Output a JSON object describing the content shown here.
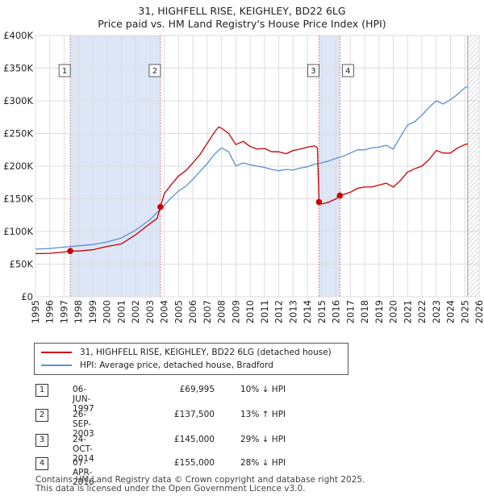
{
  "title": {
    "line1": "31, HIGHFELL RISE, KEIGHLEY, BD22 6LG",
    "line2": "Price paid vs. HM Land Registry's House Price Index (HPI)"
  },
  "colors": {
    "price_paid": "#cc0000",
    "hpi": "#5b8fd4",
    "sale_band": "#dde6f7",
    "marker_line": "#e06060",
    "grid": "#dddddd"
  },
  "legend": {
    "series1": "31, HIGHFELL RISE, KEIGHLEY, BD22 6LG (detached house)",
    "series2": "HPI: Average price, detached house, Bradford"
  },
  "transactions": [
    {
      "num": "1",
      "date": "06-JUN-1997",
      "price": "£69,995",
      "hpi": "10% ↓ HPI"
    },
    {
      "num": "2",
      "date": "26-SEP-2003",
      "price": "£137,500",
      "hpi": "13% ↑ HPI"
    },
    {
      "num": "3",
      "date": "24-OCT-2014",
      "price": "£145,000",
      "hpi": "29% ↓ HPI"
    },
    {
      "num": "4",
      "date": "07-APR-2016",
      "price": "£155,000",
      "hpi": "28% ↓ HPI"
    }
  ],
  "footer": {
    "line1": "Contains HM Land Registry data © Crown copyright and database right 2025.",
    "line2": "This data is licensed under the Open Government Licence v3.0."
  },
  "chart_data": {
    "type": "line",
    "title": "31, HIGHFELL RISE, KEIGHLEY, BD22 6LG — Price paid vs. HM Land Registry's House Price Index (HPI)",
    "xlabel": "",
    "ylabel": "",
    "xlim": [
      1995,
      2026
    ],
    "ylim": [
      0,
      400000
    ],
    "x_ticks": [
      "1995",
      "1996",
      "1997",
      "1998",
      "1999",
      "2000",
      "2001",
      "2002",
      "2003",
      "2004",
      "2005",
      "2006",
      "2007",
      "2008",
      "2009",
      "2010",
      "2011",
      "2012",
      "2013",
      "2014",
      "2015",
      "2016",
      "2017",
      "2018",
      "2019",
      "2020",
      "2021",
      "2022",
      "2023",
      "2024",
      "2025",
      "2026"
    ],
    "y_ticks": [
      {
        "value": 0,
        "label": "£0"
      },
      {
        "value": 50000,
        "label": "£50K"
      },
      {
        "value": 100000,
        "label": "£100K"
      },
      {
        "value": 150000,
        "label": "£150K"
      },
      {
        "value": 200000,
        "label": "£200K"
      },
      {
        "value": 250000,
        "label": "£250K"
      },
      {
        "value": 300000,
        "label": "£300K"
      },
      {
        "value": 350000,
        "label": "£350K"
      },
      {
        "value": 400000,
        "label": "£400K"
      }
    ],
    "grid": true,
    "sale_bands": [
      [
        1997.43,
        2003.73
      ],
      [
        2014.81,
        2016.27
      ]
    ],
    "forecast_from": 2025.2,
    "sales": [
      {
        "label": "1",
        "x": 1997.43,
        "y": 69995
      },
      {
        "label": "2",
        "x": 2003.73,
        "y": 137500
      },
      {
        "label": "3",
        "x": 2014.81,
        "y": 145000
      },
      {
        "label": "4",
        "x": 2016.27,
        "y": 155000
      }
    ],
    "series": [
      {
        "name": "31, HIGHFELL RISE, KEIGHLEY, BD22 6LG (detached house)",
        "points": [
          [
            1995.0,
            66000
          ],
          [
            1996.0,
            66500
          ],
          [
            1997.0,
            68500
          ],
          [
            1997.43,
            69995
          ],
          [
            1998.0,
            70000
          ],
          [
            1999.0,
            72000
          ],
          [
            2000.0,
            77000
          ],
          [
            2001.0,
            81000
          ],
          [
            2002.0,
            95000
          ],
          [
            2003.0,
            112000
          ],
          [
            2003.5,
            120000
          ],
          [
            2003.73,
            137500
          ],
          [
            2004.0,
            158000
          ],
          [
            2004.5,
            172000
          ],
          [
            2005.0,
            185000
          ],
          [
            2005.5,
            193000
          ],
          [
            2006.0,
            205000
          ],
          [
            2006.5,
            218000
          ],
          [
            2007.0,
            235000
          ],
          [
            2007.5,
            252000
          ],
          [
            2007.8,
            260000
          ],
          [
            2008.0,
            258000
          ],
          [
            2008.5,
            250000
          ],
          [
            2009.0,
            233000
          ],
          [
            2009.5,
            238000
          ],
          [
            2010.0,
            230000
          ],
          [
            2010.5,
            226000
          ],
          [
            2011.0,
            227000
          ],
          [
            2011.5,
            222000
          ],
          [
            2012.0,
            222000
          ],
          [
            2012.5,
            219000
          ],
          [
            2013.0,
            224000
          ],
          [
            2013.5,
            226000
          ],
          [
            2014.0,
            229000
          ],
          [
            2014.5,
            231000
          ],
          [
            2014.7,
            228000
          ],
          [
            2014.81,
            145000
          ],
          [
            2015.0,
            142000
          ],
          [
            2015.5,
            145000
          ],
          [
            2016.0,
            150000
          ],
          [
            2016.27,
            155000
          ],
          [
            2016.6,
            157000
          ],
          [
            2017.0,
            160000
          ],
          [
            2017.5,
            166000
          ],
          [
            2018.0,
            168000
          ],
          [
            2018.5,
            168000
          ],
          [
            2019.0,
            171000
          ],
          [
            2019.5,
            174000
          ],
          [
            2020.0,
            168000
          ],
          [
            2020.5,
            178000
          ],
          [
            2021.0,
            191000
          ],
          [
            2021.5,
            196000
          ],
          [
            2022.0,
            200000
          ],
          [
            2022.5,
            210000
          ],
          [
            2023.0,
            224000
          ],
          [
            2023.5,
            220000
          ],
          [
            2024.0,
            220000
          ],
          [
            2024.5,
            228000
          ],
          [
            2025.0,
            233000
          ],
          [
            2025.2,
            234000
          ]
        ]
      },
      {
        "name": "HPI: Average price, detached house, Bradford",
        "points": [
          [
            1995.0,
            73000
          ],
          [
            1996.0,
            74000
          ],
          [
            1997.0,
            76000
          ],
          [
            1998.0,
            78000
          ],
          [
            1999.0,
            80000
          ],
          [
            2000.0,
            84000
          ],
          [
            2001.0,
            90000
          ],
          [
            2002.0,
            102000
          ],
          [
            2003.0,
            118000
          ],
          [
            2004.0,
            140000
          ],
          [
            2004.5,
            152000
          ],
          [
            2005.0,
            162000
          ],
          [
            2005.5,
            169000
          ],
          [
            2006.0,
            180000
          ],
          [
            2006.5,
            192000
          ],
          [
            2007.0,
            204000
          ],
          [
            2007.5,
            218000
          ],
          [
            2008.0,
            228000
          ],
          [
            2008.5,
            222000
          ],
          [
            2009.0,
            200000
          ],
          [
            2009.5,
            205000
          ],
          [
            2010.0,
            202000
          ],
          [
            2010.5,
            200000
          ],
          [
            2011.0,
            198000
          ],
          [
            2011.5,
            195000
          ],
          [
            2012.0,
            193000
          ],
          [
            2012.5,
            195000
          ],
          [
            2013.0,
            194000
          ],
          [
            2013.5,
            197000
          ],
          [
            2014.0,
            199000
          ],
          [
            2014.5,
            203000
          ],
          [
            2015.0,
            205000
          ],
          [
            2015.5,
            208000
          ],
          [
            2016.0,
            212000
          ],
          [
            2016.5,
            215000
          ],
          [
            2017.0,
            220000
          ],
          [
            2017.5,
            225000
          ],
          [
            2018.0,
            225000
          ],
          [
            2018.5,
            228000
          ],
          [
            2019.0,
            229000
          ],
          [
            2019.5,
            232000
          ],
          [
            2020.0,
            226000
          ],
          [
            2020.5,
            245000
          ],
          [
            2021.0,
            263000
          ],
          [
            2021.5,
            268000
          ],
          [
            2022.0,
            278000
          ],
          [
            2022.5,
            290000
          ],
          [
            2023.0,
            300000
          ],
          [
            2023.5,
            295000
          ],
          [
            2024.0,
            302000
          ],
          [
            2024.5,
            310000
          ],
          [
            2025.0,
            320000
          ],
          [
            2025.2,
            322000
          ]
        ]
      }
    ]
  }
}
